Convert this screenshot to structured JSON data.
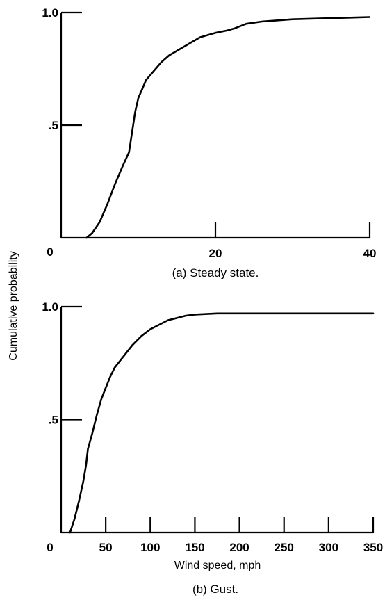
{
  "figure": {
    "ylabel": "Cumulative probability",
    "xlabel": "Wind speed, mph"
  },
  "chart_data": [
    {
      "type": "line",
      "title": "(a) Steady state.",
      "xlabel": "",
      "ylabel": "Cumulative probability",
      "xlim": [
        0,
        40
      ],
      "ylim": [
        0,
        1.0
      ],
      "x_ticks": [
        20,
        40
      ],
      "x_tick_labels": [
        "0",
        "20",
        "40"
      ],
      "y_ticks": [
        0.5,
        1.0
      ],
      "y_tick_labels": [
        "0",
        ".5",
        "1.0"
      ],
      "grid": false,
      "series": [
        {
          "x": [
            3.3,
            4.0,
            5.0,
            6.0,
            7.0,
            8.0,
            8.8,
            9.2,
            9.6,
            10.0,
            10.5,
            11.0,
            12.0,
            13.0,
            14.0,
            15.0,
            16.0,
            17.0,
            17.5,
            18.0,
            20.0,
            21.5,
            22.5,
            24.0,
            26.0,
            30.0,
            35.0,
            40.0
          ],
          "y": [
            0.0,
            0.02,
            0.07,
            0.15,
            0.24,
            0.32,
            0.38,
            0.47,
            0.56,
            0.62,
            0.66,
            0.7,
            0.74,
            0.78,
            0.81,
            0.83,
            0.85,
            0.87,
            0.88,
            0.89,
            0.91,
            0.92,
            0.93,
            0.95,
            0.96,
            0.97,
            0.975,
            0.98
          ]
        }
      ]
    },
    {
      "type": "line",
      "title": "(b) Gust.",
      "xlabel": "Wind speed, mph",
      "ylabel": "Cumulative probability",
      "xlim": [
        0,
        350
      ],
      "ylim": [
        0,
        1.0
      ],
      "x_ticks": [
        50,
        100,
        150,
        200,
        250,
        300,
        350
      ],
      "x_tick_labels": [
        "0",
        "50",
        "100",
        "150",
        "200",
        "250",
        "300",
        "350"
      ],
      "y_ticks": [
        0.5,
        1.0
      ],
      "y_tick_labels": [
        ".5",
        "1.0"
      ],
      "grid": false,
      "series": [
        {
          "x": [
            10,
            15,
            20,
            25,
            28,
            30,
            35,
            40,
            45,
            50,
            55,
            60,
            70,
            80,
            90,
            100,
            110,
            120,
            130,
            140,
            150,
            175,
            200,
            250,
            300,
            350
          ],
          "y": [
            0.0,
            0.06,
            0.14,
            0.23,
            0.3,
            0.37,
            0.44,
            0.52,
            0.59,
            0.64,
            0.69,
            0.73,
            0.78,
            0.83,
            0.87,
            0.9,
            0.92,
            0.94,
            0.95,
            0.96,
            0.965,
            0.97,
            0.97,
            0.97,
            0.97,
            0.97
          ]
        }
      ]
    }
  ]
}
